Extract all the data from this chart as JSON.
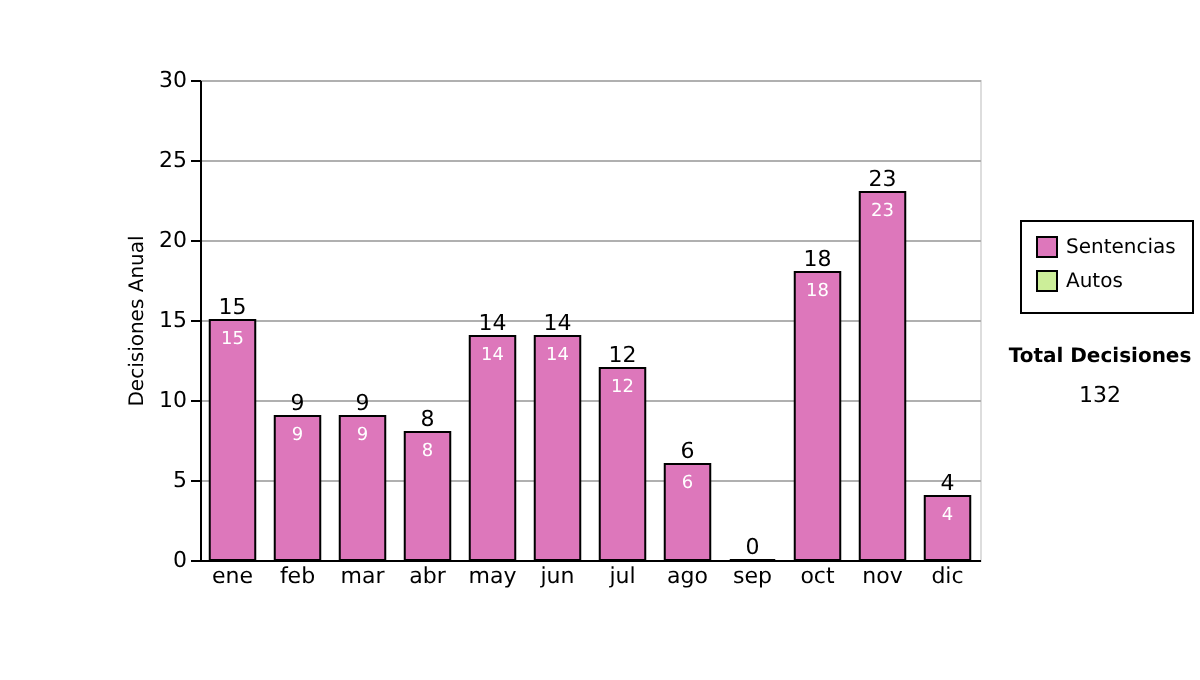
{
  "chart_data": {
    "type": "bar",
    "stacked": true,
    "ylabel": "Decisiones Anual",
    "categories": [
      "ene",
      "feb",
      "mar",
      "abr",
      "may",
      "jun",
      "jul",
      "ago",
      "sep",
      "oct",
      "nov",
      "dic"
    ],
    "series": [
      {
        "name": "Sentencias",
        "color": "#dd77bb",
        "values": [
          15,
          9,
          9,
          8,
          14,
          14,
          12,
          6,
          0,
          18,
          23,
          4
        ],
        "value_labels": [
          "15",
          "9",
          "9",
          "8",
          "14",
          "14",
          "12",
          "6",
          null,
          "18",
          "23",
          "4"
        ]
      },
      {
        "name": "Autos",
        "color": "#ccee99",
        "values": [
          null,
          null,
          null,
          null,
          null,
          null,
          null,
          null,
          null,
          null,
          null,
          null
        ]
      }
    ],
    "totals": [
      "15",
      "9",
      "9",
      "8",
      "14",
      "14",
      "12",
      "6",
      "0",
      "18",
      "23",
      "4"
    ],
    "ylim": [
      0,
      30
    ],
    "yticks": [
      0,
      5,
      10,
      15,
      20,
      25,
      30
    ],
    "grid": "y",
    "legend": "right",
    "annotations": [
      "Total Decisiones",
      "132"
    ]
  }
}
